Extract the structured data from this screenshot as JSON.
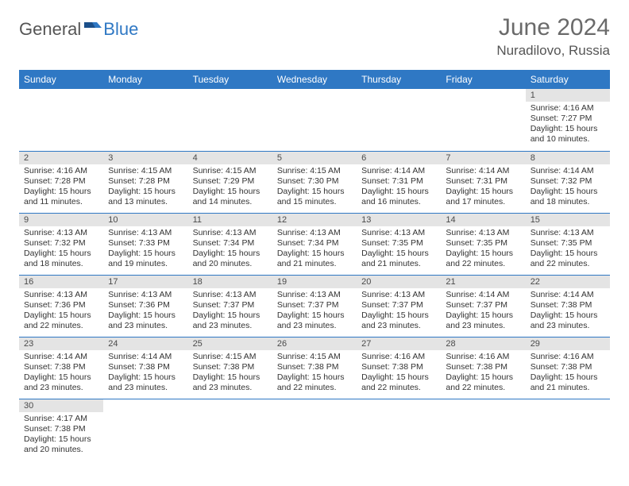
{
  "brand": {
    "part1": "General",
    "part2": "Blue"
  },
  "title": "June 2024",
  "location": "Nuradilovo, Russia",
  "colors": {
    "header_bg": "#2f78c4",
    "header_fg": "#ffffff",
    "daynum_bg": "#e4e4e4",
    "rule": "#2f78c4",
    "text": "#333333",
    "title": "#6a6a6a"
  },
  "weekdays": [
    "Sunday",
    "Monday",
    "Tuesday",
    "Wednesday",
    "Thursday",
    "Friday",
    "Saturday"
  ],
  "weeks": [
    [
      null,
      null,
      null,
      null,
      null,
      null,
      {
        "d": "1",
        "sr": "Sunrise: 4:16 AM",
        "ss": "Sunset: 7:27 PM",
        "dl1": "Daylight: 15 hours",
        "dl2": "and 10 minutes."
      }
    ],
    [
      {
        "d": "2",
        "sr": "Sunrise: 4:16 AM",
        "ss": "Sunset: 7:28 PM",
        "dl1": "Daylight: 15 hours",
        "dl2": "and 11 minutes."
      },
      {
        "d": "3",
        "sr": "Sunrise: 4:15 AM",
        "ss": "Sunset: 7:28 PM",
        "dl1": "Daylight: 15 hours",
        "dl2": "and 13 minutes."
      },
      {
        "d": "4",
        "sr": "Sunrise: 4:15 AM",
        "ss": "Sunset: 7:29 PM",
        "dl1": "Daylight: 15 hours",
        "dl2": "and 14 minutes."
      },
      {
        "d": "5",
        "sr": "Sunrise: 4:15 AM",
        "ss": "Sunset: 7:30 PM",
        "dl1": "Daylight: 15 hours",
        "dl2": "and 15 minutes."
      },
      {
        "d": "6",
        "sr": "Sunrise: 4:14 AM",
        "ss": "Sunset: 7:31 PM",
        "dl1": "Daylight: 15 hours",
        "dl2": "and 16 minutes."
      },
      {
        "d": "7",
        "sr": "Sunrise: 4:14 AM",
        "ss": "Sunset: 7:31 PM",
        "dl1": "Daylight: 15 hours",
        "dl2": "and 17 minutes."
      },
      {
        "d": "8",
        "sr": "Sunrise: 4:14 AM",
        "ss": "Sunset: 7:32 PM",
        "dl1": "Daylight: 15 hours",
        "dl2": "and 18 minutes."
      }
    ],
    [
      {
        "d": "9",
        "sr": "Sunrise: 4:13 AM",
        "ss": "Sunset: 7:32 PM",
        "dl1": "Daylight: 15 hours",
        "dl2": "and 18 minutes."
      },
      {
        "d": "10",
        "sr": "Sunrise: 4:13 AM",
        "ss": "Sunset: 7:33 PM",
        "dl1": "Daylight: 15 hours",
        "dl2": "and 19 minutes."
      },
      {
        "d": "11",
        "sr": "Sunrise: 4:13 AM",
        "ss": "Sunset: 7:34 PM",
        "dl1": "Daylight: 15 hours",
        "dl2": "and 20 minutes."
      },
      {
        "d": "12",
        "sr": "Sunrise: 4:13 AM",
        "ss": "Sunset: 7:34 PM",
        "dl1": "Daylight: 15 hours",
        "dl2": "and 21 minutes."
      },
      {
        "d": "13",
        "sr": "Sunrise: 4:13 AM",
        "ss": "Sunset: 7:35 PM",
        "dl1": "Daylight: 15 hours",
        "dl2": "and 21 minutes."
      },
      {
        "d": "14",
        "sr": "Sunrise: 4:13 AM",
        "ss": "Sunset: 7:35 PM",
        "dl1": "Daylight: 15 hours",
        "dl2": "and 22 minutes."
      },
      {
        "d": "15",
        "sr": "Sunrise: 4:13 AM",
        "ss": "Sunset: 7:35 PM",
        "dl1": "Daylight: 15 hours",
        "dl2": "and 22 minutes."
      }
    ],
    [
      {
        "d": "16",
        "sr": "Sunrise: 4:13 AM",
        "ss": "Sunset: 7:36 PM",
        "dl1": "Daylight: 15 hours",
        "dl2": "and 22 minutes."
      },
      {
        "d": "17",
        "sr": "Sunrise: 4:13 AM",
        "ss": "Sunset: 7:36 PM",
        "dl1": "Daylight: 15 hours",
        "dl2": "and 23 minutes."
      },
      {
        "d": "18",
        "sr": "Sunrise: 4:13 AM",
        "ss": "Sunset: 7:37 PM",
        "dl1": "Daylight: 15 hours",
        "dl2": "and 23 minutes."
      },
      {
        "d": "19",
        "sr": "Sunrise: 4:13 AM",
        "ss": "Sunset: 7:37 PM",
        "dl1": "Daylight: 15 hours",
        "dl2": "and 23 minutes."
      },
      {
        "d": "20",
        "sr": "Sunrise: 4:13 AM",
        "ss": "Sunset: 7:37 PM",
        "dl1": "Daylight: 15 hours",
        "dl2": "and 23 minutes."
      },
      {
        "d": "21",
        "sr": "Sunrise: 4:14 AM",
        "ss": "Sunset: 7:37 PM",
        "dl1": "Daylight: 15 hours",
        "dl2": "and 23 minutes."
      },
      {
        "d": "22",
        "sr": "Sunrise: 4:14 AM",
        "ss": "Sunset: 7:38 PM",
        "dl1": "Daylight: 15 hours",
        "dl2": "and 23 minutes."
      }
    ],
    [
      {
        "d": "23",
        "sr": "Sunrise: 4:14 AM",
        "ss": "Sunset: 7:38 PM",
        "dl1": "Daylight: 15 hours",
        "dl2": "and 23 minutes."
      },
      {
        "d": "24",
        "sr": "Sunrise: 4:14 AM",
        "ss": "Sunset: 7:38 PM",
        "dl1": "Daylight: 15 hours",
        "dl2": "and 23 minutes."
      },
      {
        "d": "25",
        "sr": "Sunrise: 4:15 AM",
        "ss": "Sunset: 7:38 PM",
        "dl1": "Daylight: 15 hours",
        "dl2": "and 23 minutes."
      },
      {
        "d": "26",
        "sr": "Sunrise: 4:15 AM",
        "ss": "Sunset: 7:38 PM",
        "dl1": "Daylight: 15 hours",
        "dl2": "and 22 minutes."
      },
      {
        "d": "27",
        "sr": "Sunrise: 4:16 AM",
        "ss": "Sunset: 7:38 PM",
        "dl1": "Daylight: 15 hours",
        "dl2": "and 22 minutes."
      },
      {
        "d": "28",
        "sr": "Sunrise: 4:16 AM",
        "ss": "Sunset: 7:38 PM",
        "dl1": "Daylight: 15 hours",
        "dl2": "and 22 minutes."
      },
      {
        "d": "29",
        "sr": "Sunrise: 4:16 AM",
        "ss": "Sunset: 7:38 PM",
        "dl1": "Daylight: 15 hours",
        "dl2": "and 21 minutes."
      }
    ],
    [
      {
        "d": "30",
        "sr": "Sunrise: 4:17 AM",
        "ss": "Sunset: 7:38 PM",
        "dl1": "Daylight: 15 hours",
        "dl2": "and 20 minutes."
      },
      null,
      null,
      null,
      null,
      null,
      null
    ]
  ]
}
